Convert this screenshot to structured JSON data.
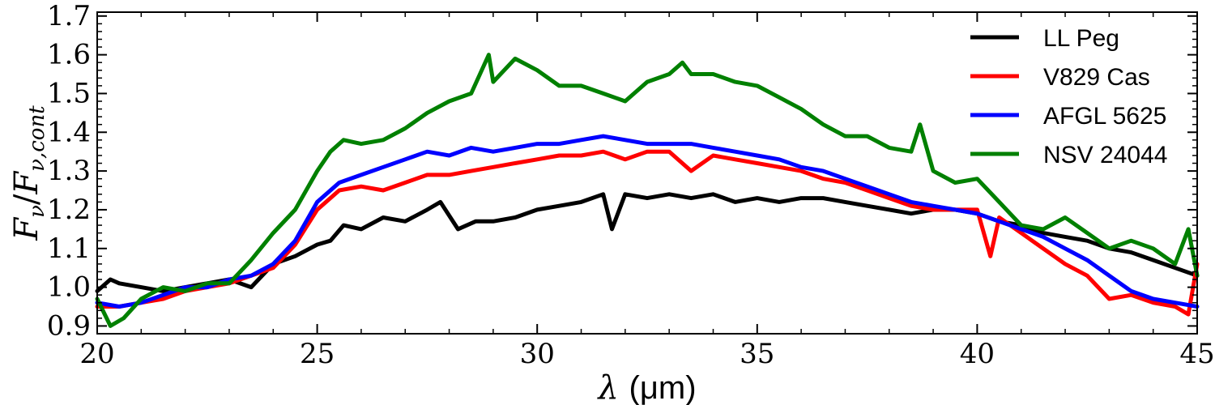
{
  "chart_data": {
    "type": "line",
    "xlabel_symbol": "λ",
    "xlabel_unit": "(μm)",
    "ylabel_main": "F",
    "ylabel_sub": "ν",
    "ylabel_denom_sub": "ν,cont",
    "xlim": [
      20,
      45
    ],
    "ylim": [
      0.88,
      1.71
    ],
    "x_ticks": [
      20,
      25,
      30,
      35,
      40,
      45
    ],
    "x_tick_labels": [
      "20",
      "25",
      "30",
      "35",
      "40",
      "45"
    ],
    "y_ticks": [
      0.9,
      1.0,
      1.1,
      1.2,
      1.3,
      1.4,
      1.5,
      1.6,
      1.7
    ],
    "y_tick_labels": [
      "0.9",
      "1.0",
      "1.1",
      "1.2",
      "1.3",
      "1.4",
      "1.5",
      "1.6",
      "1.7"
    ],
    "legend_position": "top-right",
    "series": [
      {
        "name": "LL Peg",
        "color": "#000000",
        "x": [
          20,
          20.3,
          20.5,
          21,
          21.5,
          22,
          22.5,
          23,
          23.5,
          24,
          24.5,
          25,
          25.3,
          25.6,
          26,
          26.5,
          27,
          27.5,
          27.8,
          28.2,
          28.6,
          29,
          29.5,
          30,
          30.5,
          31,
          31.5,
          31.7,
          32,
          32.5,
          33,
          33.5,
          34,
          34.5,
          35,
          35.5,
          36,
          36.5,
          37,
          37.5,
          38,
          38.5,
          39,
          39.5,
          40,
          40.5,
          41,
          41.5,
          42,
          42.5,
          43,
          43.5,
          44,
          44.5,
          45
        ],
        "y": [
          0.99,
          1.02,
          1.01,
          1.0,
          0.99,
          1.0,
          1.01,
          1.02,
          1.0,
          1.06,
          1.08,
          1.11,
          1.12,
          1.16,
          1.15,
          1.18,
          1.17,
          1.2,
          1.22,
          1.15,
          1.17,
          1.17,
          1.18,
          1.2,
          1.21,
          1.22,
          1.24,
          1.15,
          1.24,
          1.23,
          1.24,
          1.23,
          1.24,
          1.22,
          1.23,
          1.22,
          1.23,
          1.23,
          1.22,
          1.21,
          1.2,
          1.19,
          1.2,
          1.2,
          1.19,
          1.17,
          1.16,
          1.14,
          1.13,
          1.12,
          1.1,
          1.09,
          1.07,
          1.05,
          1.03
        ]
      },
      {
        "name": "V829 Cas",
        "color": "#ff0000",
        "x": [
          20,
          20.5,
          21,
          21.5,
          22,
          22.5,
          23,
          23.5,
          24,
          24.5,
          25,
          25.5,
          26,
          26.5,
          27,
          27.5,
          28,
          28.5,
          29,
          29.5,
          30,
          30.5,
          31,
          31.5,
          32,
          32.5,
          33,
          33.5,
          34,
          34.5,
          35,
          35.5,
          36,
          36.5,
          37,
          37.5,
          38,
          38.5,
          39,
          39.5,
          40,
          40.3,
          40.5,
          41,
          41.5,
          42,
          42.5,
          43,
          43.5,
          44,
          44.5,
          44.8,
          45
        ],
        "y": [
          0.95,
          0.95,
          0.96,
          0.97,
          0.99,
          1.0,
          1.01,
          1.03,
          1.05,
          1.11,
          1.2,
          1.25,
          1.26,
          1.25,
          1.27,
          1.29,
          1.29,
          1.3,
          1.31,
          1.32,
          1.33,
          1.34,
          1.34,
          1.35,
          1.33,
          1.35,
          1.35,
          1.3,
          1.34,
          1.33,
          1.32,
          1.31,
          1.3,
          1.28,
          1.27,
          1.25,
          1.23,
          1.21,
          1.2,
          1.2,
          1.2,
          1.08,
          1.18,
          1.14,
          1.1,
          1.06,
          1.03,
          0.97,
          0.98,
          0.96,
          0.95,
          0.93,
          1.06
        ]
      },
      {
        "name": "AFGL 5625",
        "color": "#0000ff",
        "x": [
          20,
          20.5,
          21,
          21.5,
          22,
          22.5,
          23,
          23.5,
          24,
          24.5,
          25,
          25.5,
          26,
          26.5,
          27,
          27.5,
          28,
          28.5,
          29,
          29.5,
          30,
          30.5,
          31,
          31.5,
          32,
          32.5,
          33,
          33.5,
          34,
          34.5,
          35,
          35.5,
          36,
          36.5,
          37,
          37.5,
          38,
          38.5,
          39,
          39.5,
          40,
          40.5,
          41,
          41.5,
          42,
          42.5,
          43,
          43.5,
          44,
          44.5,
          45
        ],
        "y": [
          0.96,
          0.95,
          0.96,
          0.98,
          1.0,
          1.0,
          1.02,
          1.03,
          1.06,
          1.12,
          1.22,
          1.27,
          1.29,
          1.31,
          1.33,
          1.35,
          1.34,
          1.36,
          1.35,
          1.36,
          1.37,
          1.37,
          1.38,
          1.39,
          1.38,
          1.37,
          1.37,
          1.37,
          1.36,
          1.35,
          1.34,
          1.33,
          1.31,
          1.3,
          1.28,
          1.26,
          1.24,
          1.22,
          1.21,
          1.2,
          1.19,
          1.17,
          1.15,
          1.13,
          1.1,
          1.07,
          1.03,
          0.99,
          0.97,
          0.96,
          0.95
        ]
      },
      {
        "name": "NSV 24044",
        "color": "#008000",
        "x": [
          20,
          20.3,
          20.6,
          21,
          21.5,
          22,
          22.5,
          23,
          23.5,
          24,
          24.5,
          25,
          25.3,
          25.6,
          26,
          26.5,
          27,
          27.5,
          28,
          28.5,
          28.9,
          29,
          29.5,
          30,
          30.5,
          31,
          31.5,
          32,
          32.5,
          33,
          33.3,
          33.5,
          34,
          34.5,
          35,
          35.5,
          36,
          36.5,
          37,
          37.5,
          38,
          38.5,
          38.7,
          39,
          39.5,
          40,
          40.5,
          41,
          41.5,
          42,
          42.5,
          43,
          43.5,
          44,
          44.5,
          44.8,
          45
        ],
        "y": [
          0.97,
          0.9,
          0.92,
          0.97,
          1.0,
          0.99,
          1.01,
          1.01,
          1.07,
          1.14,
          1.2,
          1.3,
          1.35,
          1.38,
          1.37,
          1.38,
          1.41,
          1.45,
          1.48,
          1.5,
          1.6,
          1.53,
          1.59,
          1.56,
          1.52,
          1.52,
          1.5,
          1.48,
          1.53,
          1.55,
          1.58,
          1.55,
          1.55,
          1.53,
          1.52,
          1.49,
          1.46,
          1.42,
          1.39,
          1.39,
          1.36,
          1.35,
          1.42,
          1.3,
          1.27,
          1.28,
          1.22,
          1.16,
          1.15,
          1.18,
          1.14,
          1.1,
          1.12,
          1.1,
          1.06,
          1.15,
          1.03
        ]
      }
    ]
  }
}
